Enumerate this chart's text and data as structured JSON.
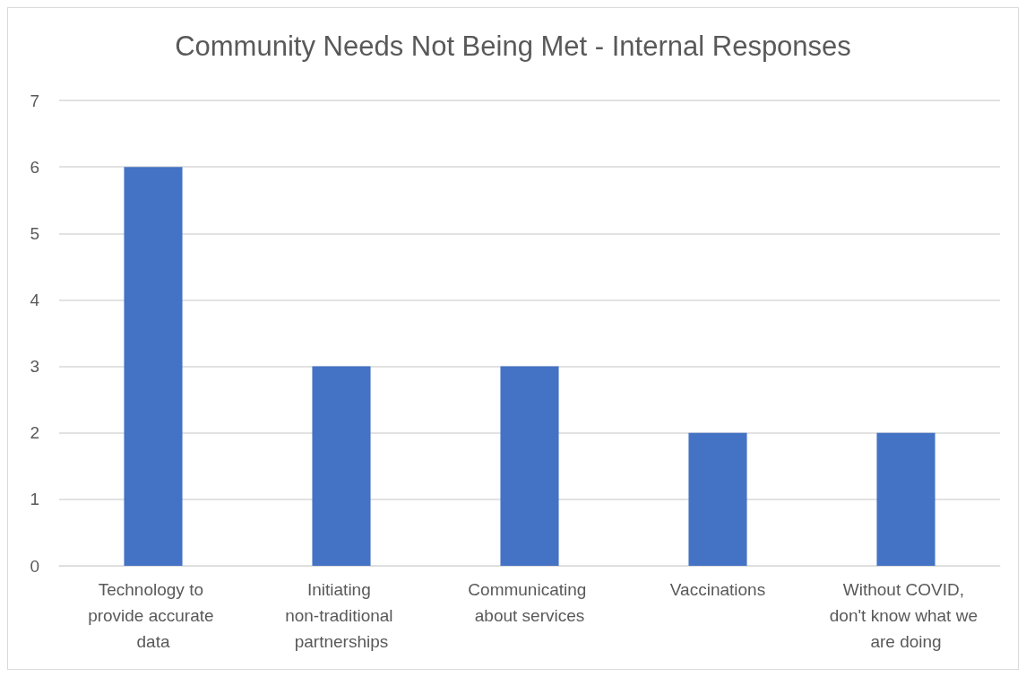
{
  "chart_data": {
    "type": "bar",
    "title": "Community Needs Not Being Met - Internal Responses",
    "categories": [
      "Technology to provide accurate data",
      "Initiating non-traditional partnerships",
      "Communicating about services",
      "Vaccinations",
      "Without COVID, don't know what we are doing"
    ],
    "values": [
      6,
      3,
      3,
      2,
      2
    ],
    "color": "#4472c4",
    "ylim": [
      0,
      7
    ],
    "yticks": [
      0,
      1,
      2,
      3,
      4,
      5,
      6,
      7
    ],
    "grid": "y"
  }
}
